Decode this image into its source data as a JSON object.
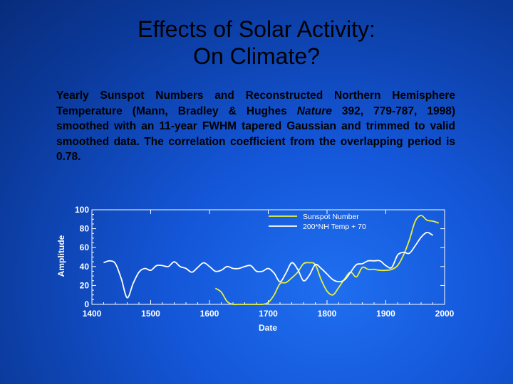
{
  "slide": {
    "title_line1": "Effects of Solar Activity:",
    "title_line2": "On Climate?",
    "caption_part1": "Yearly Sunspot Numbers and Reconstructed Northern Hemisphere Temperature (Mann, Bradley & Hughes ",
    "caption_journal": "Nature",
    "caption_part2": " 392, 779-787, 1998) smoothed with an 11-year FWHM tapered Gaussian and trimmed to valid smoothed data. The correlation coefficient from the overlapping period is 0.78."
  },
  "colors": {
    "text": "#000000",
    "axis": "#ffffff",
    "sunspot": "#e8f03a",
    "temperature": "#ffffff",
    "background": "#1456d8"
  },
  "chart_data": {
    "type": "line",
    "xlabel": "Date",
    "ylabel": "Amplitude",
    "xlim": [
      1400,
      2000
    ],
    "ylim": [
      0,
      100
    ],
    "xticks": [
      1400,
      1500,
      1600,
      1700,
      1800,
      1900,
      2000
    ],
    "yticks": [
      0,
      20,
      40,
      60,
      80,
      100
    ],
    "legend_position": "top-right",
    "grid": false,
    "series": [
      {
        "name": "Sunspot Number",
        "x": [
          1610,
          1620,
          1630,
          1640,
          1650,
          1660,
          1670,
          1680,
          1690,
          1700,
          1710,
          1720,
          1730,
          1740,
          1750,
          1760,
          1770,
          1780,
          1790,
          1800,
          1810,
          1820,
          1830,
          1840,
          1850,
          1860,
          1870,
          1880,
          1890,
          1900,
          1910,
          1920,
          1930,
          1940,
          1950,
          1960,
          1970,
          1980,
          1990
        ],
        "y": [
          17,
          13,
          3,
          0,
          0,
          0,
          0,
          0,
          0,
          2,
          10,
          22,
          23,
          28,
          34,
          43,
          44,
          42,
          26,
          14,
          10,
          18,
          27,
          34,
          29,
          39,
          37,
          37,
          36,
          36,
          37,
          41,
          52,
          68,
          88,
          94,
          89,
          88,
          86
        ]
      },
      {
        "name": "200*NH Temp + 70",
        "x": [
          1420,
          1430,
          1440,
          1450,
          1460,
          1470,
          1480,
          1490,
          1500,
          1510,
          1520,
          1530,
          1540,
          1550,
          1560,
          1570,
          1580,
          1590,
          1600,
          1610,
          1620,
          1630,
          1640,
          1650,
          1660,
          1670,
          1680,
          1690,
          1700,
          1710,
          1720,
          1730,
          1740,
          1750,
          1760,
          1770,
          1780,
          1790,
          1800,
          1810,
          1820,
          1830,
          1840,
          1850,
          1860,
          1870,
          1880,
          1890,
          1900,
          1910,
          1920,
          1930,
          1940,
          1950,
          1960,
          1970,
          1980
        ],
        "y": [
          44,
          46,
          43,
          27,
          7,
          22,
          34,
          38,
          36,
          41,
          41,
          40,
          45,
          40,
          38,
          34,
          39,
          44,
          40,
          35,
          36,
          40,
          38,
          38,
          40,
          41,
          35,
          35,
          38,
          33,
          24,
          33,
          44,
          37,
          25,
          31,
          42,
          38,
          32,
          26,
          24,
          26,
          34,
          42,
          43,
          46,
          46,
          46,
          41,
          39,
          52,
          55,
          54,
          62,
          71,
          76,
          73
        ]
      }
    ]
  }
}
